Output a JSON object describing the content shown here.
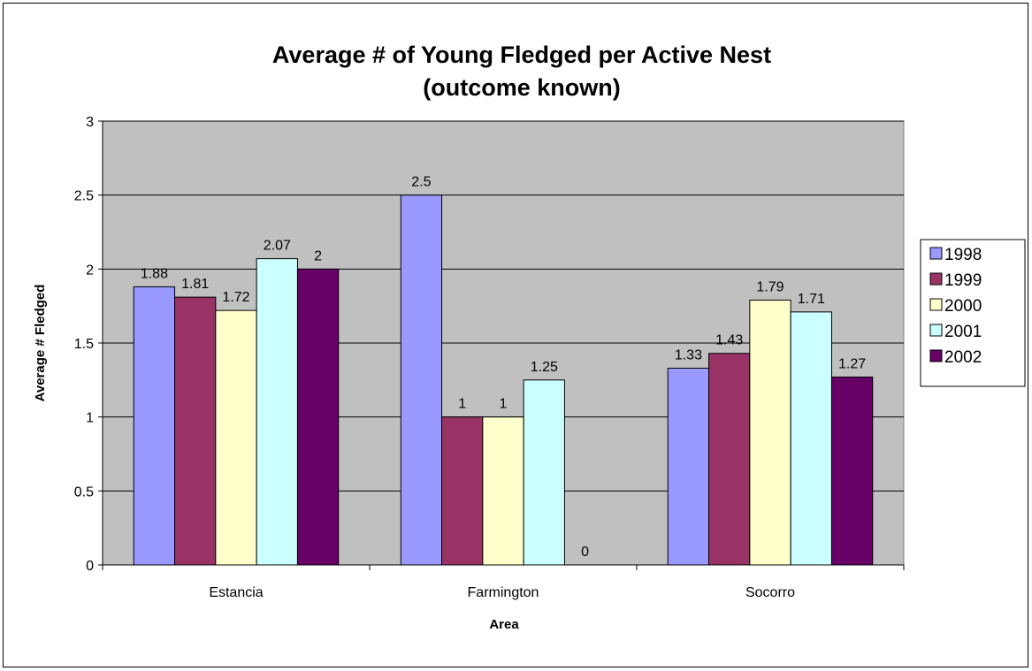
{
  "chart_data": {
    "type": "bar",
    "title": "Average # of Young Fledged per Active Nest",
    "subtitle": "(outcome known)",
    "xlabel": "Area",
    "ylabel": "Average # Fledged",
    "categories": [
      "Estancia",
      "Farmington",
      "Socorro"
    ],
    "ylim": [
      0,
      3
    ],
    "yticks": [
      "0",
      "0.5",
      "1",
      "1.5",
      "2",
      "2.5",
      "3"
    ],
    "grid": true,
    "plot_background": "#c0c0c0",
    "legend_position": "right",
    "series": [
      {
        "name": "1998",
        "color": "#9999ff",
        "values": [
          1.88,
          2.5,
          1.33
        ],
        "labels": [
          "1.88",
          "2.5",
          "1.33"
        ]
      },
      {
        "name": "1999",
        "color": "#993366",
        "values": [
          1.81,
          1,
          1.43
        ],
        "labels": [
          "1.81",
          "1",
          "1.43"
        ]
      },
      {
        "name": "2000",
        "color": "#ffffcc",
        "values": [
          1.72,
          1,
          1.79
        ],
        "labels": [
          "1.72",
          "1",
          "1.79"
        ]
      },
      {
        "name": "2001",
        "color": "#ccffff",
        "values": [
          2.07,
          1.25,
          1.71
        ],
        "labels": [
          "2.07",
          "1.25",
          "1.71"
        ]
      },
      {
        "name": "2002",
        "color": "#660066",
        "values": [
          2,
          0,
          1.27
        ],
        "labels": [
          "2",
          "0",
          "1.27"
        ]
      }
    ]
  }
}
